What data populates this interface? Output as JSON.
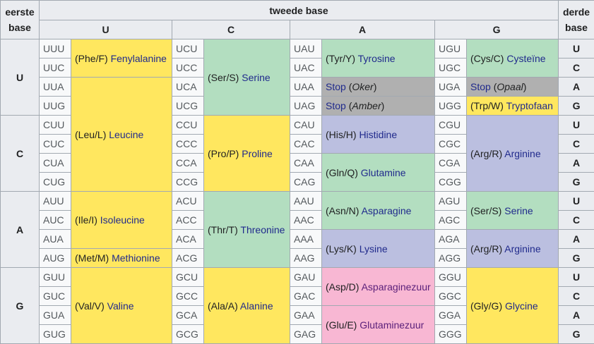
{
  "headers": {
    "first_base": "eerste base",
    "second_base": "tweede base",
    "third_base": "derde base",
    "second": [
      "U",
      "C",
      "A",
      "G"
    ]
  },
  "rows": [
    {
      "first": "U",
      "third": [
        "U",
        "C",
        "A",
        "G"
      ],
      "codons": [
        [
          "UUU",
          "UCU",
          "UAU",
          "UGU"
        ],
        [
          "UUC",
          "UCC",
          "UAC",
          "UGC"
        ],
        [
          "UUA",
          "UCA",
          "UAA",
          "UGA"
        ],
        [
          "UUG",
          "UCG",
          "UAG",
          "UGG"
        ]
      ]
    },
    {
      "first": "C",
      "third": [
        "U",
        "C",
        "A",
        "G"
      ],
      "codons": [
        [
          "CUU",
          "CCU",
          "CAU",
          "CGU"
        ],
        [
          "CUC",
          "CCC",
          "CAC",
          "CGC"
        ],
        [
          "CUA",
          "CCA",
          "CAA",
          "CGA"
        ],
        [
          "CUG",
          "CCG",
          "CAG",
          "CGG"
        ]
      ]
    },
    {
      "first": "A",
      "third": [
        "U",
        "C",
        "A",
        "G"
      ],
      "codons": [
        [
          "AUU",
          "ACU",
          "AAU",
          "AGU"
        ],
        [
          "AUC",
          "ACC",
          "AAC",
          "AGC"
        ],
        [
          "AUA",
          "ACA",
          "AAA",
          "AGA"
        ],
        [
          "AUG",
          "ACG",
          "AAG",
          "AGG"
        ]
      ]
    },
    {
      "first": "G",
      "third": [
        "U",
        "C",
        "A",
        "G"
      ],
      "codons": [
        [
          "GUU",
          "GCU",
          "GAU",
          "GGU"
        ],
        [
          "GUC",
          "GCC",
          "GAC",
          "GGC"
        ],
        [
          "GUA",
          "GCA",
          "GAA",
          "GGA"
        ],
        [
          "GUG",
          "GCG",
          "GAG",
          "GGG"
        ]
      ]
    }
  ],
  "aminoacids": {
    "phe": {
      "code": "(Phe/F)",
      "name": "Fenylalanine"
    },
    "leu": {
      "code": "(Leu/L)",
      "name": "Leucine"
    },
    "ile": {
      "code": "(Ile/I)",
      "name": "Isoleucine"
    },
    "met": {
      "code": "(Met/M)",
      "name": "Methionine"
    },
    "val": {
      "code": "(Val/V)",
      "name": "Valine"
    },
    "ser1": {
      "code": "(Ser/S)",
      "name": "Serine"
    },
    "pro": {
      "code": "(Pro/P)",
      "name": "Proline"
    },
    "thr": {
      "code": "(Thr/T)",
      "name": "Threonine"
    },
    "ala": {
      "code": "(Ala/A)",
      "name": "Alanine"
    },
    "tyr": {
      "code": "(Tyr/Y)",
      "name": "Tyrosine"
    },
    "stop_oker": {
      "label": "Stop",
      "note": "Oker"
    },
    "stop_amber": {
      "label": "Stop",
      "note": "Amber"
    },
    "his": {
      "code": "(His/H)",
      "name": "Histidine"
    },
    "gln": {
      "code": "(Gln/Q)",
      "name": "Glutamine"
    },
    "asn": {
      "code": "(Asn/N)",
      "name": "Asparagine"
    },
    "lys": {
      "code": "(Lys/K)",
      "name": "Lysine"
    },
    "asp": {
      "code": "(Asp/D)",
      "name": "Asparaginezuur"
    },
    "glu": {
      "code": "(Glu/E)",
      "name": "Glutaminezuur"
    },
    "cys": {
      "code": "(Cys/C)",
      "name": "Cysteïne"
    },
    "stop_opaal": {
      "label": "Stop",
      "note": "Opaal"
    },
    "trp": {
      "code": "(Trp/W)",
      "name": "Tryptofaan"
    },
    "arg1": {
      "code": "(Arg/R)",
      "name": "Arginine"
    },
    "ser2": {
      "code": "(Ser/S)",
      "name": "Serine"
    },
    "arg2": {
      "code": "(Arg/R)",
      "name": "Arginine"
    },
    "gly": {
      "code": "(Gly/G)",
      "name": "Glycine"
    }
  },
  "colors": {
    "nonpolar": "#ffe75f",
    "polar": "#b3dec0",
    "basic": "#bbbfe0",
    "acidic": "#f8b7d3",
    "stop": "#b0b0b0",
    "header": "#eaecf0"
  }
}
